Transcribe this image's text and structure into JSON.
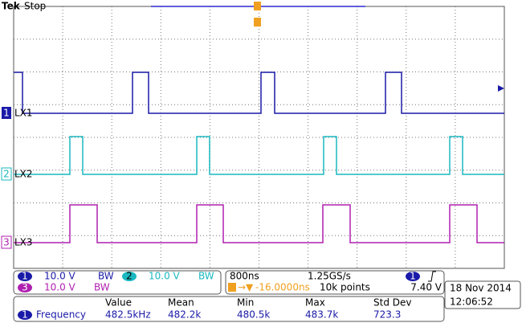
{
  "header": {
    "brand": "Tek",
    "status": "Stop"
  },
  "channels": [
    {
      "marker": "1",
      "label": "LX1"
    },
    {
      "marker": "2",
      "label": "LX2"
    },
    {
      "marker": "3",
      "label": "LX3"
    }
  ],
  "channel_settings": [
    {
      "marker": "1",
      "scale": "10.0 V",
      "bw": "BW"
    },
    {
      "marker": "2",
      "scale": "10.0 V",
      "bw": "BW"
    },
    {
      "marker": "3",
      "scale": "10.0 V",
      "bw": "BW"
    }
  ],
  "timebase": {
    "scale": "800ns",
    "sample_rate": "1.25GS/s",
    "trigger_source": "1",
    "trigger_position": "-16.0000ns",
    "record_length": "10k points",
    "trigger_level": "7.40 V"
  },
  "timestamp": {
    "date": "18 Nov 2014",
    "time": "12:06:52"
  },
  "measurements": {
    "headers": [
      "Value",
      "Mean",
      "Min",
      "Max",
      "Std Dev"
    ],
    "rows": [
      {
        "source": "1",
        "name": "Frequency",
        "values": [
          "482.5kHz",
          "482.2k",
          "480.5k",
          "483.7k",
          "723.3"
        ]
      }
    ]
  }
}
